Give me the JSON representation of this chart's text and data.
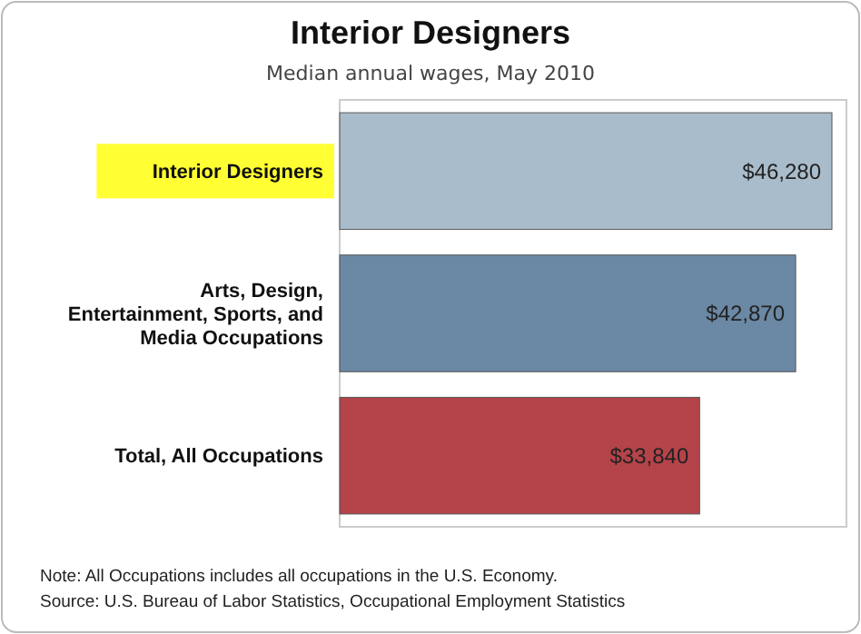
{
  "chart_data": {
    "type": "bar",
    "orientation": "horizontal",
    "title": "Interior Designers",
    "subtitle": "Median annual wages, May 2010",
    "categories": [
      "Interior Designers",
      "Arts, Design, Entertainment, Sports, and Media Occupations",
      "Total, All Occupations"
    ],
    "values": [
      46280,
      42870,
      33840
    ],
    "colors": [
      "#a9bccb",
      "#6b88a4",
      "#b5434a"
    ],
    "value_labels": [
      "$46,280",
      "$42,870",
      "$33,840"
    ],
    "annotations": [
      "Note: All Occupations includes all occupations in the U.S. Economy.",
      "Source: U.S. Bureau of Labor Statistics, Occupational Employment Statistics"
    ]
  }
}
